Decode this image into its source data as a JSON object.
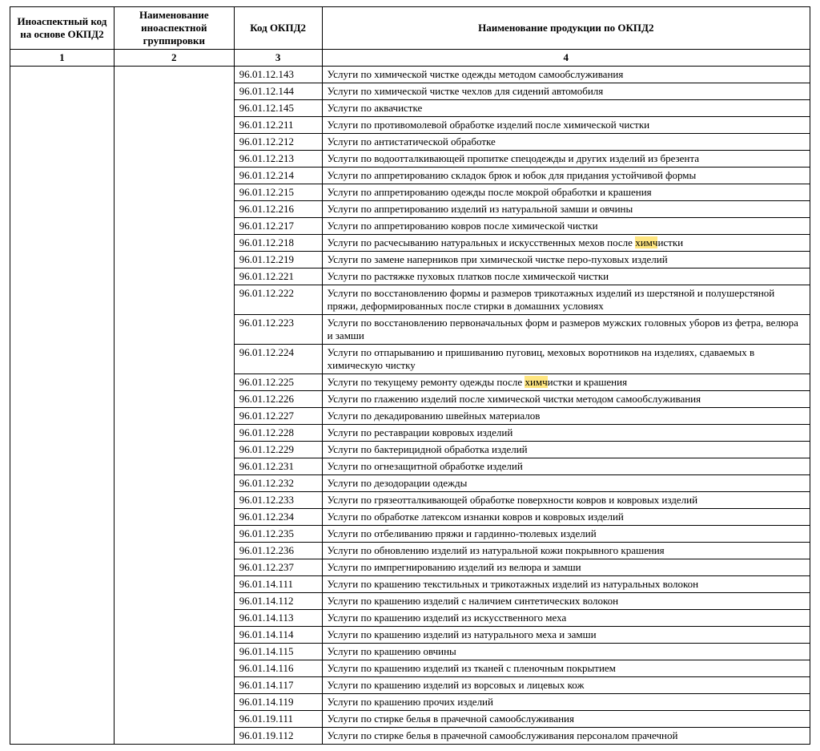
{
  "headers": {
    "col1": "Иноаспектный код на основе ОКПД2",
    "col2": "Наименование иноаспектной группировки",
    "col3": "Код ОКПД2",
    "col4": "Наименование продукции по ОКПД2",
    "n1": "1",
    "n2": "2",
    "n3": "3",
    "n4": "4"
  },
  "highlight_color": "#ffe680",
  "rows": [
    {
      "code": "96.01.12.143",
      "desc": "Услуги по химической чистке одежды методом самообслуживания"
    },
    {
      "code": "96.01.12.144",
      "desc": "Услуги по химической чистке чехлов для сидений автомобиля"
    },
    {
      "code": "96.01.12.145",
      "desc": "Услуги по аквачистке"
    },
    {
      "code": "96.01.12.211",
      "desc": "Услуги по противомолевой обработке изделий после химической чистки"
    },
    {
      "code": "96.01.12.212",
      "desc": "Услуги по антистатической обработке"
    },
    {
      "code": "96.01.12.213",
      "desc": "Услуги по водоотталкивающей пропитке спецодежды и других изделий из брезента"
    },
    {
      "code": "96.01.12.214",
      "desc": "Услуги по аппретированию складок брюк и юбок для придания устойчивой формы"
    },
    {
      "code": "96.01.12.215",
      "desc": "Услуги по аппретированию одежды после мокрой обработки и крашения"
    },
    {
      "code": "96.01.12.216",
      "desc": "Услуги по аппретированию изделий из натуральной замши и овчины"
    },
    {
      "code": "96.01.12.217",
      "desc": "Услуги по аппретированию ковров после химической чистки"
    },
    {
      "code": "96.01.12.218",
      "desc": "Услуги по расчесыванию натуральных и искусственных мехов после ",
      "hl": "химч",
      "desc2": "истки"
    },
    {
      "code": "96.01.12.219",
      "desc": "Услуги по замене наперников при химической чистке перо-пуховых изделий"
    },
    {
      "code": "96.01.12.221",
      "desc": "Услуги по растяжке пуховых платков после химической чистки"
    },
    {
      "code": "96.01.12.222",
      "desc": "Услуги по восстановлению формы и размеров трикотажных изделий из шерстяной и полушерстяной пряжи, деформированных после стирки в домашних условиях"
    },
    {
      "code": "96.01.12.223",
      "desc": "Услуги по восстановлению первоначальных форм и размеров мужских головных уборов из фетра, велюра и замши"
    },
    {
      "code": "96.01.12.224",
      "desc": "Услуги по отпарыванию и пришиванию пуговиц, меховых воротников на изделиях, сдаваемых в химическую чистку"
    },
    {
      "code": "96.01.12.225",
      "desc": "Услуги по текущему ремонту одежды после ",
      "hl": "химч",
      "desc2": "истки и крашения"
    },
    {
      "code": "96.01.12.226",
      "desc": "Услуги по глажению изделий после химической чистки методом самообслуживания"
    },
    {
      "code": "96.01.12.227",
      "desc": "Услуги по декадированию швейных материалов"
    },
    {
      "code": "96.01.12.228",
      "desc": "Услуги по реставрации ковровых изделий"
    },
    {
      "code": "96.01.12.229",
      "desc": "Услуги по бактерицидной обработка изделий"
    },
    {
      "code": "96.01.12.231",
      "desc": "Услуги по огнезащитной обработке изделий"
    },
    {
      "code": "96.01.12.232",
      "desc": "Услуги по дезодорации одежды"
    },
    {
      "code": "96.01.12.233",
      "desc": "Услуги по грязеотталкивающей обработке поверхности ковров и ковровых изделий"
    },
    {
      "code": "96.01.12.234",
      "desc": "Услуги по обработке латексом изнанки ковров и ковровых изделий"
    },
    {
      "code": "96.01.12.235",
      "desc": "Услуги по отбеливанию пряжи и гардинно-тюлевых изделий"
    },
    {
      "code": "96.01.12.236",
      "desc": "Услуги по обновлению изделий из натуральной кожи покрывного крашения"
    },
    {
      "code": "96.01.12.237",
      "desc": "Услуги по импрегнированию изделий из велюра и замши"
    },
    {
      "code": "96.01.14.111",
      "desc": "Услуги по крашению текстильных и трикотажных изделий из натуральных волокон"
    },
    {
      "code": "96.01.14.112",
      "desc": "Услуги по крашению изделий с наличием синтетических волокон"
    },
    {
      "code": "96.01.14.113",
      "desc": "Услуги по крашению изделий из искусственного меха"
    },
    {
      "code": "96.01.14.114",
      "desc": "Услуги по крашению изделий из натурального меха и замши"
    },
    {
      "code": "96.01.14.115",
      "desc": "Услуги по крашению овчины"
    },
    {
      "code": "96.01.14.116",
      "desc": "Услуги по крашению изделий из тканей с пленочным покрытием"
    },
    {
      "code": "96.01.14.117",
      "desc": "Услуги по крашению изделий из ворсовых и лицевых кож"
    },
    {
      "code": "96.01.14.119",
      "desc": "Услуги по крашению прочих изделий"
    },
    {
      "code": "96.01.19.111",
      "desc": "Услуги по стирке белья в прачечной самообслуживания"
    },
    {
      "code": "96.01.19.112",
      "desc": "Услуги по стирке белья в прачечной самообслуживания персоналом прачечной"
    }
  ]
}
